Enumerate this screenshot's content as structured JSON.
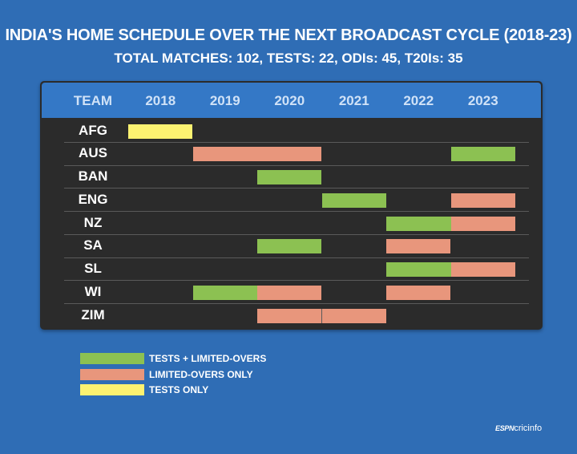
{
  "title": "INDIA'S HOME SCHEDULE OVER THE NEXT BROADCAST CYCLE (2018-23)",
  "subtitle": "TOTAL MATCHES: 102,  TESTS: 22, ODIs: 45, T20Is: 35",
  "colors": {
    "tests_limited": "#8cc152",
    "limited_only": "#e8967c",
    "tests_only": "#fcf271"
  },
  "legend": [
    {
      "key": "tests_limited",
      "label": "TESTS + LIMITED-OVERS"
    },
    {
      "key": "limited_only",
      "label": "LIMITED-OVERS ONLY"
    },
    {
      "key": "tests_only",
      "label": "TESTS ONLY"
    }
  ],
  "logo": {
    "brand": "ESPN",
    "name": "cricinfo"
  },
  "chart_data": {
    "type": "table",
    "header_label": "TEAM",
    "years": [
      "2018",
      "2019",
      "2020",
      "2021",
      "2022",
      "2023"
    ],
    "rows": [
      {
        "team": "AFG",
        "cells": [
          "tests_only",
          null,
          null,
          null,
          null,
          null
        ]
      },
      {
        "team": "AUS",
        "cells": [
          null,
          "limited_only",
          "limited_only",
          null,
          null,
          "tests_limited"
        ]
      },
      {
        "team": "BAN",
        "cells": [
          null,
          null,
          "tests_limited",
          null,
          null,
          null
        ]
      },
      {
        "team": "ENG",
        "cells": [
          null,
          null,
          null,
          "tests_limited",
          null,
          "limited_only"
        ]
      },
      {
        "team": "NZ",
        "cells": [
          null,
          null,
          null,
          null,
          "tests_limited",
          "limited_only"
        ]
      },
      {
        "team": "SA",
        "cells": [
          null,
          null,
          "tests_limited",
          null,
          "limited_only",
          null
        ]
      },
      {
        "team": "SL",
        "cells": [
          null,
          null,
          null,
          null,
          "tests_limited",
          "limited_only"
        ]
      },
      {
        "team": "WI",
        "cells": [
          null,
          "tests_limited",
          "limited_only",
          null,
          "limited_only",
          null
        ]
      },
      {
        "team": "ZIM",
        "cells": [
          null,
          null,
          "limited_only",
          "limited_only",
          null,
          null
        ]
      }
    ]
  }
}
